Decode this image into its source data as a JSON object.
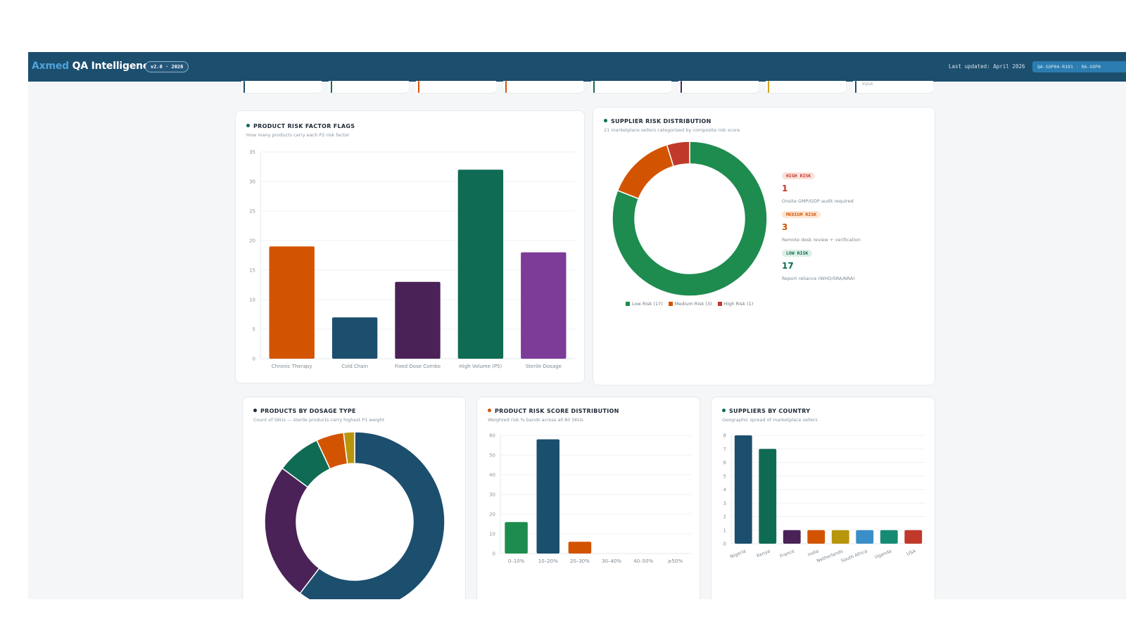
{
  "header": {
    "brand_part1": "Axmed",
    "brand_part2": " QA Intelligence",
    "version": "v2.0 · 2026",
    "last_updated": "Last updated: April 2026",
    "ref_codes": "QA-SOP04-R101 · RA-SOP0"
  },
  "kpi_strip": {
    "items": [
      {
        "accent": "#1c4e6e",
        "text": ""
      },
      {
        "accent": "#0f6b54",
        "text": ""
      },
      {
        "accent": "#d35400",
        "text": ""
      },
      {
        "accent": "#d35400",
        "text": ""
      },
      {
        "accent": "#0f6b54",
        "text": ""
      },
      {
        "accent": "#4a2257",
        "text": ""
      },
      {
        "accent": "#d4a017",
        "text": ""
      },
      {
        "accent": "#1c4e6e",
        "text": "Input"
      }
    ]
  },
  "colors": {
    "navy": "#1c4e6e",
    "orange": "#d35400",
    "plum": "#4a2257",
    "teal": "#0f6b54",
    "purple": "#7d3c98",
    "green": "#1e8c4e",
    "red": "#c0392b",
    "mustard": "#b8960c",
    "sky": "#3a8fc8",
    "sea": "#168b74"
  },
  "risk_flags": {
    "title": "PRODUCT RISK FACTOR FLAGS",
    "subtitle": "How many products carry each P2 risk factor",
    "chart_data": {
      "type": "bar",
      "categories": [
        "Chronic Therapy",
        "Cold Chain",
        "Fixed Dose Combo",
        "High Volume (P5)",
        "Sterile Dosage"
      ],
      "values": [
        19,
        7,
        13,
        32,
        18
      ],
      "colors": [
        "#d35400",
        "#1c4e6e",
        "#4a2257",
        "#0f6b54",
        "#7d3c98"
      ],
      "yticks": [
        "0",
        "5",
        "10",
        "15",
        "20",
        "25",
        "30",
        "35"
      ],
      "ylim": [
        0,
        35
      ],
      "grid": true
    }
  },
  "supplier_risk": {
    "title": "SUPPLIER RISK DISTRIBUTION",
    "subtitle": "21 marketplace sellers categorised by composite risk score",
    "chart_data": {
      "type": "pie",
      "labels": [
        "Low Risk (17)",
        "Medium Risk (3)",
        "High Risk (1)"
      ],
      "values": [
        17,
        3,
        1
      ],
      "colors": [
        "#1e8c4e",
        "#d35400",
        "#c0392b"
      ],
      "legend_position": "bottom"
    },
    "levels": [
      {
        "label": "HIGH RISK",
        "count": "1",
        "desc": "Onsite GMP/GDP audit required",
        "color": "#c0392b",
        "bg": "#fbe3dc"
      },
      {
        "label": "MEDIUM RISK",
        "count": "3",
        "desc": "Remote desk review + verification",
        "color": "#d35400",
        "bg": "#fde6d4"
      },
      {
        "label": "LOW RISK",
        "count": "17",
        "desc": "Report reliance (WHO/SRA/NRA)",
        "color": "#0f6b54",
        "bg": "#dcefe5"
      }
    ]
  },
  "dosage_type": {
    "title": "PRODUCTS BY DOSAGE TYPE",
    "subtitle": "Count of SKUs — sterile products carry highest P1 weight",
    "chart_data": {
      "type": "pie",
      "labels": [
        "",
        "",
        "",
        "",
        ""
      ],
      "values": [
        61,
        25,
        8,
        5,
        2
      ],
      "colors": [
        "#1c4e6e",
        "#4a2257",
        "#0f6b54",
        "#d35400",
        "#b8960c"
      ]
    }
  },
  "risk_score": {
    "title": "PRODUCT RISK SCORE DISTRIBUTION",
    "subtitle": "Weighted risk % bands across all 80 SKUs",
    "chart_data": {
      "type": "bar",
      "categories": [
        "0–10%",
        "10–20%",
        "20–30%",
        "30–40%",
        "40–50%",
        "≥50%"
      ],
      "values": [
        16,
        58,
        6,
        0,
        0,
        0
      ],
      "colors": [
        "#1e8c4e",
        "#1c4e6e",
        "#d35400",
        "#1c4e6e",
        "#1c4e6e",
        "#1c4e6e"
      ],
      "yticks": [
        "0",
        "10",
        "20",
        "30",
        "40",
        "50",
        "60"
      ],
      "ylim": [
        0,
        60
      ],
      "grid": true
    }
  },
  "by_country": {
    "title": "SUPPLIERS BY COUNTRY",
    "subtitle": "Geographic spread of marketplace sellers",
    "chart_data": {
      "type": "bar",
      "categories": [
        "Nigeria",
        "Kenya",
        "France",
        "India",
        "Netherlands",
        "South Africa",
        "Uganda",
        "USA"
      ],
      "values": [
        8,
        7,
        1,
        1,
        1,
        1,
        1,
        1
      ],
      "colors": [
        "#1c4e6e",
        "#0f6b54",
        "#4a2257",
        "#d35400",
        "#b8960c",
        "#3a8fc8",
        "#168b74",
        "#c0392b"
      ],
      "yticks": [
        "0",
        "1",
        "2",
        "3",
        "4",
        "5",
        "6",
        "7",
        "8"
      ],
      "ylim": [
        0,
        8
      ],
      "grid": true
    }
  }
}
